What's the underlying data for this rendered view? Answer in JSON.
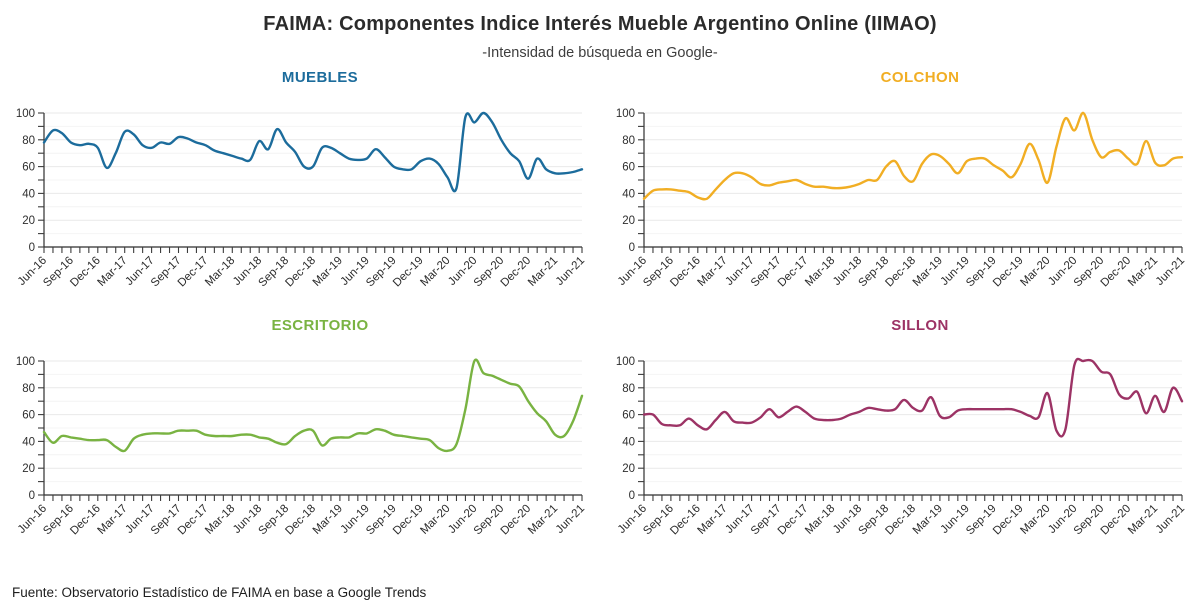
{
  "header": {
    "title": "FAIMA: Componentes Indice Interés Mueble Argentino Online (IIMAO)",
    "subtitle": "-Intensidad de búsqueda en Google-"
  },
  "footer": {
    "source": "Fuente: Observatorio Estadístico de FAIMA en base a Google Trends"
  },
  "axis": {
    "ylim": [
      0,
      100
    ],
    "y_ticks": [
      0,
      20,
      40,
      60,
      80,
      100
    ],
    "y_minor_step": 10,
    "x_minor_step": "1 month",
    "x_tick_labels": [
      "Jun-16",
      "Sep-16",
      "Dec-16",
      "Mar-17",
      "Jun-17",
      "Sep-17",
      "Dec-17",
      "Mar-18",
      "Jun-18",
      "Sep-18",
      "Dec-18",
      "Mar-19",
      "Jun-19",
      "Sep-19",
      "Dec-19",
      "Mar-20",
      "Jun-20",
      "Sep-20",
      "Dec-20",
      "Mar-21",
      "Jun-21"
    ],
    "grid": "light horizontal gridlines"
  },
  "chart_data": [
    {
      "type": "line",
      "title": "MUEBLES",
      "color": "#1C6C9C",
      "x_start": "Jun-2016",
      "x_end": "Jun-2021",
      "x_frequency": "monthly",
      "values": [
        78,
        87,
        85,
        78,
        76,
        77,
        74,
        59,
        70,
        86,
        84,
        76,
        74,
        78,
        77,
        82,
        81,
        78,
        76,
        72,
        70,
        68,
        66,
        65,
        79,
        73,
        88,
        78,
        71,
        60,
        60,
        74,
        74,
        70,
        66,
        65,
        66,
        73,
        67,
        60,
        58,
        58,
        64,
        66,
        62,
        52,
        44,
        97,
        93,
        100,
        93,
        80,
        70,
        64,
        51,
        66,
        58,
        55,
        55,
        56,
        58
      ]
    },
    {
      "type": "line",
      "title": "COLCHON",
      "color": "#F1AE24",
      "x_start": "Jun-2016",
      "x_end": "Jun-2021",
      "x_frequency": "monthly",
      "values": [
        36,
        42,
        43,
        43,
        42,
        41,
        37,
        36,
        43,
        50,
        55,
        55,
        52,
        47,
        46,
        48,
        49,
        50,
        47,
        45,
        45,
        44,
        44,
        45,
        47,
        50,
        50,
        60,
        64,
        53,
        49,
        62,
        69,
        68,
        62,
        55,
        64,
        66,
        66,
        61,
        57,
        52,
        62,
        77,
        65,
        48,
        75,
        96,
        87,
        100,
        80,
        67,
        71,
        72,
        66,
        62,
        79,
        63,
        61,
        66,
        67
      ]
    },
    {
      "type": "line",
      "title": "ESCRITORIO",
      "color": "#79B342",
      "x_start": "Jun-2016",
      "x_end": "Jun-2021",
      "x_frequency": "monthly",
      "values": [
        47,
        39,
        44,
        43,
        42,
        41,
        41,
        41,
        36,
        33,
        42,
        45,
        46,
        46,
        46,
        48,
        48,
        48,
        45,
        44,
        44,
        44,
        45,
        45,
        43,
        42,
        39,
        38,
        44,
        48,
        48,
        37,
        42,
        43,
        43,
        46,
        46,
        49,
        48,
        45,
        44,
        43,
        42,
        41,
        35,
        33,
        38,
        64,
        100,
        91,
        89,
        86,
        83,
        81,
        70,
        61,
        55,
        45,
        44,
        55,
        74
      ]
    },
    {
      "type": "line",
      "title": "SILLON",
      "color": "#9C3365",
      "x_start": "Jun-2016",
      "x_end": "Jun-2021",
      "x_frequency": "monthly",
      "values": [
        60,
        60,
        53,
        52,
        52,
        57,
        52,
        49,
        56,
        62,
        55,
        54,
        54,
        58,
        64,
        58,
        62,
        66,
        62,
        57,
        56,
        56,
        57,
        60,
        62,
        65,
        64,
        63,
        64,
        71,
        65,
        63,
        73,
        59,
        58,
        63,
        64,
        64,
        64,
        64,
        64,
        64,
        62,
        59,
        58,
        76,
        48,
        49,
        97,
        100,
        100,
        92,
        90,
        75,
        72,
        77,
        61,
        74,
        62,
        80,
        70
      ]
    }
  ]
}
